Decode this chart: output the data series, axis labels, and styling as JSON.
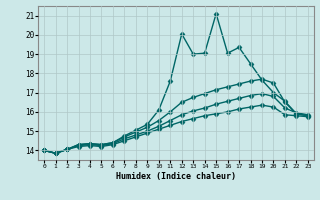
{
  "xlabel": "Humidex (Indice chaleur)",
  "ylabel": "",
  "bg_color": "#cce8e8",
  "grid_color": "#b0c8c8",
  "line_color": "#006666",
  "xlim": [
    -0.5,
    23.5
  ],
  "ylim": [
    13.5,
    21.5
  ],
  "xticks": [
    0,
    1,
    2,
    3,
    4,
    5,
    6,
    7,
    8,
    9,
    10,
    11,
    12,
    13,
    14,
    15,
    16,
    17,
    18,
    19,
    20,
    21,
    22,
    23
  ],
  "yticks": [
    14,
    15,
    16,
    17,
    18,
    19,
    20,
    21
  ],
  "lines": [
    {
      "x": [
        0,
        1,
        2,
        3,
        4,
        5,
        6,
        7,
        8,
        9,
        10,
        11,
        12,
        13,
        14,
        15,
        16,
        17,
        18,
        19,
        20,
        21,
        22,
        23
      ],
      "y": [
        14.0,
        13.85,
        14.05,
        14.3,
        14.35,
        14.3,
        14.4,
        14.75,
        15.05,
        15.35,
        16.1,
        17.6,
        20.05,
        19.0,
        19.05,
        21.1,
        19.05,
        19.35,
        18.5,
        17.65,
        17.0,
        16.55,
        15.9,
        15.8
      ],
      "marker": "D",
      "markersize": 2.5,
      "linewidth": 1.0
    },
    {
      "x": [
        0,
        1,
        2,
        3,
        4,
        5,
        6,
        7,
        8,
        9,
        10,
        11,
        12,
        13,
        14,
        15,
        16,
        17,
        18,
        19,
        20,
        21,
        22,
        23
      ],
      "y": [
        14.0,
        13.85,
        14.05,
        14.3,
        14.35,
        14.3,
        14.4,
        14.7,
        14.95,
        15.2,
        15.55,
        16.0,
        16.5,
        16.75,
        16.95,
        17.15,
        17.3,
        17.45,
        17.6,
        17.7,
        17.5,
        16.5,
        15.9,
        15.8
      ],
      "marker": "D",
      "markersize": 2.5,
      "linewidth": 1.0
    },
    {
      "x": [
        0,
        1,
        2,
        3,
        4,
        5,
        6,
        7,
        8,
        9,
        10,
        11,
        12,
        13,
        14,
        15,
        16,
        17,
        18,
        19,
        20,
        21,
        22,
        23
      ],
      "y": [
        14.0,
        13.85,
        14.05,
        14.25,
        14.3,
        14.25,
        14.35,
        14.6,
        14.8,
        15.0,
        15.25,
        15.55,
        15.85,
        16.05,
        16.2,
        16.4,
        16.55,
        16.7,
        16.85,
        16.95,
        16.8,
        16.2,
        15.95,
        15.85
      ],
      "marker": "D",
      "markersize": 2.5,
      "linewidth": 1.0
    },
    {
      "x": [
        0,
        1,
        2,
        3,
        4,
        5,
        6,
        7,
        8,
        9,
        10,
        11,
        12,
        13,
        14,
        15,
        16,
        17,
        18,
        19,
        20,
        21,
        22,
        23
      ],
      "y": [
        14.0,
        13.85,
        14.05,
        14.2,
        14.25,
        14.2,
        14.3,
        14.5,
        14.7,
        14.9,
        15.1,
        15.3,
        15.5,
        15.65,
        15.8,
        15.9,
        16.0,
        16.15,
        16.25,
        16.35,
        16.25,
        15.85,
        15.8,
        15.75
      ],
      "marker": "D",
      "markersize": 2.5,
      "linewidth": 1.0
    }
  ]
}
